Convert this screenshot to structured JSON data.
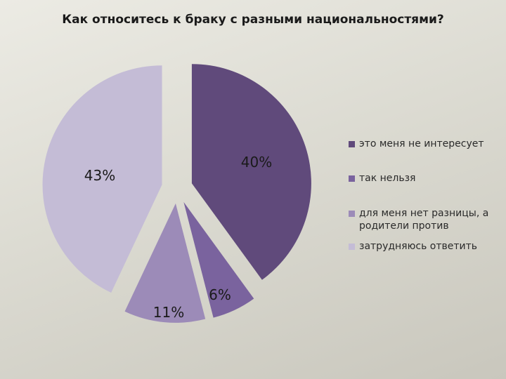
{
  "chart_data": {
    "type": "pie",
    "title": "Как относитесь к браку с разными национальностями?",
    "slices": [
      {
        "label": "это меня не интересует",
        "value": 40,
        "value_label": "40%",
        "color": "#604a7b"
      },
      {
        "label": "так нельзя",
        "value": 6,
        "value_label": "6%",
        "color": "#7a639e"
      },
      {
        "label": "для меня нет разницы, а родители против",
        "value": 11,
        "value_label": "11%",
        "color": "#9c8bb8"
      },
      {
        "label": "затрудняюсь ответить",
        "value": 43,
        "value_label": "43%",
        "color": "#c4bcd6"
      }
    ],
    "legend_position": "right"
  }
}
